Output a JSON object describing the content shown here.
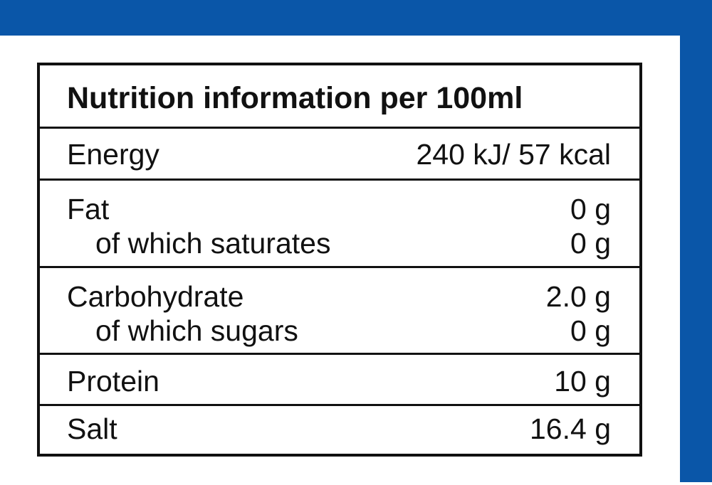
{
  "colors": {
    "accent_blue": "#0a56a8",
    "border": "#111111",
    "text": "#111111",
    "background": "#ffffff"
  },
  "label": {
    "title": "Nutrition information per 100ml",
    "rows": [
      {
        "label": "Energy",
        "value": "240 kJ/ 57 kcal"
      },
      {
        "label": "Fat",
        "value": "0 g",
        "sub_label": "of which saturates",
        "sub_value": "0 g"
      },
      {
        "label": "Carbohydrate",
        "value": "2.0 g",
        "sub_label": "of which sugars",
        "sub_value": "0 g"
      },
      {
        "label": "Protein",
        "value": "10 g"
      },
      {
        "label": "Salt",
        "value": "16.4 g"
      }
    ]
  }
}
